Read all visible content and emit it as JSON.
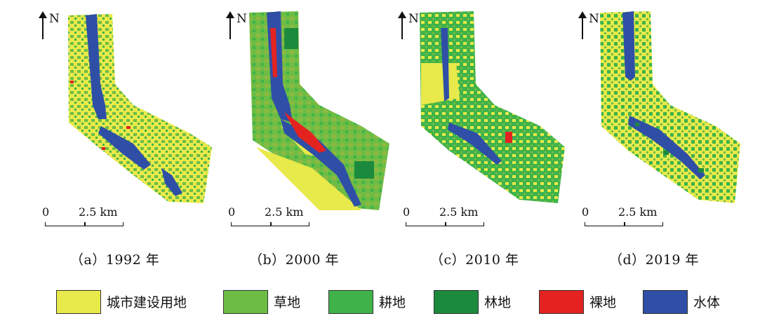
{
  "colors": {
    "urban": "#e8e94a",
    "grass": "#6dbd45",
    "farmland": "#3fb34a",
    "forest": "#1c8a3c",
    "bare": "#e42321",
    "water": "#2f4fa6"
  },
  "panels": [
    {
      "caption": "（a）1992 年",
      "north": "N",
      "scale_zero": "0",
      "scale_dist": "2.5 km"
    },
    {
      "caption": "（b）2000 年",
      "north": "N",
      "scale_zero": "0",
      "scale_dist": "2.5 km"
    },
    {
      "caption": "（c）2010 年",
      "north": "N",
      "scale_zero": "0",
      "scale_dist": "2.5 km"
    },
    {
      "caption": "（d）2019 年",
      "north": "N",
      "scale_zero": "0",
      "scale_dist": "2.5 km"
    }
  ],
  "legend": [
    {
      "label": "城市建设用地",
      "color": "#e8e94a"
    },
    {
      "label": "草地",
      "color": "#6dbd45"
    },
    {
      "label": "耕地",
      "color": "#3fb34a"
    },
    {
      "label": "林地",
      "color": "#1c8a3c"
    },
    {
      "label": "裸地",
      "color": "#e42321"
    },
    {
      "label": "水体",
      "color": "#2f4fa6"
    }
  ]
}
